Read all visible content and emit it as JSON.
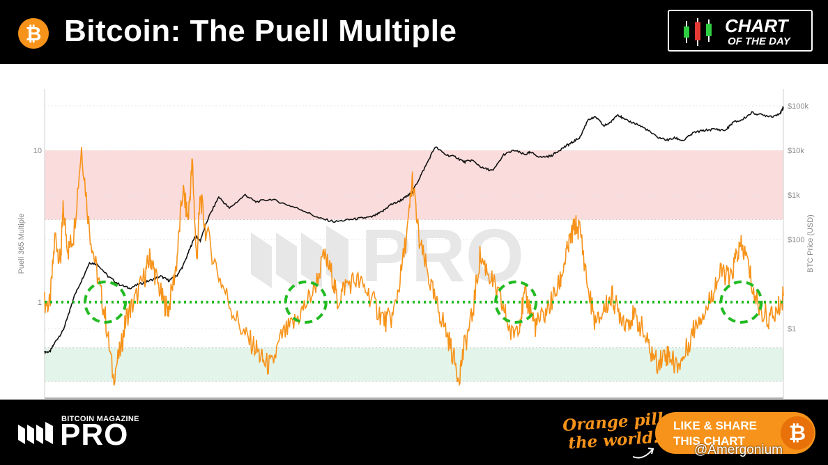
{
  "header": {
    "btc_symbol": "₿",
    "title": "Bitcoin: The Puell Multiple",
    "badge_line1": "CHART",
    "badge_line2": "OF THE DAY"
  },
  "chart_data": {
    "type": "line",
    "title": "",
    "left_axis": {
      "label": "Puell 365 Multiple",
      "scale": "log",
      "ticks": [
        "10",
        "1"
      ]
    },
    "right_axis": {
      "label": "BTC Price (USD)",
      "scale": "log",
      "ticks": [
        "$100k",
        "$10k",
        "$1k",
        "$100",
        "$1"
      ]
    },
    "zones": [
      {
        "name": "overheated",
        "color": "#fbdcdc",
        "from": 3.5,
        "to": 10
      },
      {
        "name": "undervalued",
        "color": "#e3f5ea",
        "from": 0.3,
        "to": 0.5
      }
    ],
    "reference_line": {
      "value": 1,
      "color": "#22bb22",
      "style": "dotted"
    },
    "highlight_circles": 4,
    "series": [
      {
        "color": "#f7931a",
        "axis": "left",
        "x": [
          2011.0,
          2011.1,
          2011.2,
          2011.3,
          2011.35,
          2011.45,
          2011.55,
          2011.7,
          2011.85,
          2012.0,
          2012.15,
          2012.3,
          2012.45,
          2012.55,
          2012.7,
          2012.9,
          2013.0,
          2013.1,
          2013.25,
          2013.35,
          2013.5,
          2013.62,
          2013.72,
          2013.8,
          2013.88,
          2013.95,
          2014.05,
          2014.3,
          2014.55,
          2014.8,
          2015.0,
          2015.15,
          2015.3,
          2015.5,
          2015.7,
          2015.9,
          2016.1,
          2016.3,
          2016.45,
          2016.55,
          2016.7,
          2016.9,
          2017.1,
          2017.3,
          2017.45,
          2017.6,
          2017.75,
          2017.9,
          2017.97,
          2018.1,
          2018.25,
          2018.4,
          2018.55,
          2018.7,
          2018.85,
          2018.95,
          2019.1,
          2019.25,
          2019.4,
          2019.55,
          2019.7,
          2019.85,
          2020.0,
          2020.1,
          2020.2,
          2020.3,
          2020.45,
          2020.6,
          2020.75,
          2020.85,
          2020.95,
          2021.05,
          2021.15,
          2021.3,
          2021.45,
          2021.6,
          2021.75,
          2021.85,
          2022.0,
          2022.15,
          2022.3,
          2022.45,
          2022.6,
          2022.75,
          2022.85,
          2022.95,
          2023.1,
          2023.25,
          2023.4,
          2023.55,
          2023.7,
          2023.85,
          2024.0,
          2024.1,
          2024.2,
          2024.3,
          2024.45,
          2024.6,
          2024.75,
          2024.9,
          2025.0
        ],
        "y": [
          1.0,
          0.95,
          2.8,
          1.8,
          4.0,
          2.2,
          2.8,
          10.5,
          3.0,
          1.5,
          0.8,
          0.32,
          0.5,
          0.8,
          1.0,
          1.5,
          2.0,
          1.5,
          1.0,
          0.9,
          1.8,
          5.5,
          3.5,
          8.5,
          1.8,
          5.0,
          3.0,
          1.5,
          0.9,
          0.6,
          0.5,
          0.4,
          0.38,
          0.6,
          0.7,
          0.9,
          1.2,
          2.0,
          1.5,
          1.0,
          1.3,
          1.4,
          1.2,
          0.9,
          0.75,
          0.8,
          1.5,
          3.5,
          6.5,
          2.5,
          1.6,
          1.0,
          0.75,
          0.5,
          0.32,
          0.5,
          0.8,
          2.0,
          1.6,
          1.2,
          0.9,
          0.6,
          0.75,
          1.1,
          0.9,
          0.7,
          0.8,
          1.0,
          1.3,
          1.8,
          2.5,
          3.2,
          3.0,
          1.2,
          0.7,
          0.9,
          1.1,
          0.9,
          0.75,
          0.8,
          0.7,
          0.5,
          0.4,
          0.45,
          0.45,
          0.38,
          0.42,
          0.6,
          0.8,
          0.9,
          1.3,
          1.6,
          1.4,
          2.0,
          2.3,
          2.0,
          1.1,
          0.85,
          0.78,
          0.9,
          1.1
        ]
      },
      {
        "color": "#111111",
        "axis": "right",
        "x": [
          2011.0,
          2011.1,
          2011.2,
          2011.35,
          2011.45,
          2011.55,
          2011.7,
          2011.85,
          2012.0,
          2012.2,
          2012.4,
          2012.6,
          2012.8,
          2013.0,
          2013.2,
          2013.35,
          2013.5,
          2013.62,
          2013.75,
          2013.85,
          2013.95,
          2014.1,
          2014.3,
          2014.5,
          2014.8,
          2015.0,
          2015.3,
          2015.6,
          2015.9,
          2016.2,
          2016.5,
          2016.8,
          2017.0,
          2017.2,
          2017.4,
          2017.55,
          2017.7,
          2017.85,
          2017.95,
          2018.05,
          2018.2,
          2018.4,
          2018.6,
          2018.8,
          2018.95,
          2019.1,
          2019.3,
          2019.5,
          2019.7,
          2019.9,
          2020.1,
          2020.2,
          2020.4,
          2020.6,
          2020.75,
          2020.9,
          2021.0,
          2021.15,
          2021.3,
          2021.45,
          2021.6,
          2021.75,
          2021.85,
          2022.0,
          2022.2,
          2022.4,
          2022.6,
          2022.8,
          2022.95,
          2023.1,
          2023.3,
          2023.5,
          2023.7,
          2023.9,
          2024.05,
          2024.2,
          2024.4,
          2024.6,
          2024.8,
          2024.95,
          2025.0
        ],
        "y": [
          0.3,
          0.3,
          0.5,
          0.9,
          2,
          5,
          12,
          30,
          28,
          15,
          10,
          8,
          10,
          12,
          15,
          12,
          15,
          25,
          60,
          120,
          95,
          300,
          900,
          500,
          1000,
          700,
          800,
          600,
          450,
          300,
          250,
          280,
          300,
          320,
          420,
          600,
          700,
          900,
          1100,
          1800,
          4000,
          12000,
          8000,
          7000,
          5500,
          6000,
          4000,
          3500,
          8000,
          10000,
          8000,
          9000,
          7000,
          7500,
          10000,
          13000,
          15000,
          20000,
          50000,
          55000,
          35000,
          45000,
          65000,
          48000,
          40000,
          30000,
          20000,
          17000,
          19000,
          16500,
          25000,
          28000,
          30000,
          28000,
          43000,
          47000,
          70000,
          62000,
          58000,
          70000,
          95000
        ]
      }
    ]
  },
  "watermark": {
    "top": "BITCOIN MAGAZINE",
    "main": "PRO"
  },
  "footer": {
    "brand_small": "BITCOIN MAGAZINE",
    "brand_main": "PRO",
    "slogan_line1": "Orange pill",
    "slogan_line2": "the world!",
    "share_line1": "LIKE & SHARE",
    "share_line2": "THIS CHART",
    "share_btc": "₿",
    "credit": "@Amergonium"
  }
}
